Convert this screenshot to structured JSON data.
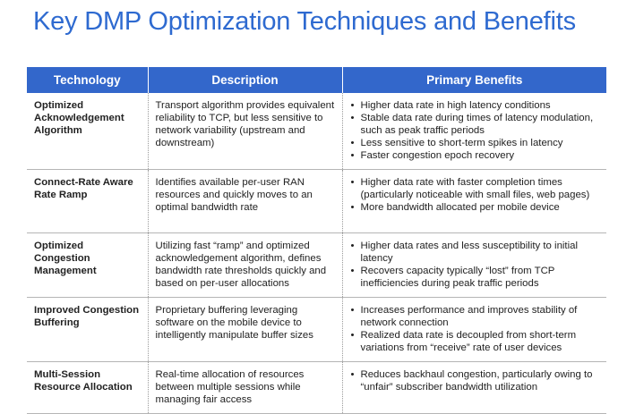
{
  "title": "Key DMP Optimization Techniques and Benefits",
  "table": {
    "headers": [
      "Technology",
      "Description",
      "Primary Benefits"
    ],
    "rows": [
      {
        "technology": "Optimized Acknowledgement Algorithm",
        "description": "Transport algorithm provides equivalent reliability to TCP, but less sensitive to network variability (upstream and downstream)",
        "benefits": [
          "Higher data rate in high latency conditions",
          "Stable data rate during times of latency modulation, such as peak traffic periods",
          "Less sensitive to short-term spikes in latency",
          "Faster congestion epoch recovery"
        ]
      },
      {
        "technology": "Connect-Rate Aware Rate Ramp",
        "description": "Identifies available per-user RAN resources and quickly moves to an optimal bandwidth rate",
        "benefits": [
          "Higher data rate with faster completion times (particularly noticeable with small files, web pages)",
          "More bandwidth allocated per mobile device"
        ]
      },
      {
        "technology": "Optimized Congestion Management",
        "description": "Utilizing fast “ramp” and optimized acknowledgement algorithm, defines bandwidth rate thresholds quickly and based on per-user allocations",
        "benefits": [
          "Higher data rates and less susceptibility to initial latency",
          "Recovers capacity typically “lost” from TCP inefficiencies during peak traffic periods"
        ]
      },
      {
        "technology": "Improved Congestion Buffering",
        "description": "Proprietary buffering leveraging software on the mobile device to intelligently manipulate buffer sizes",
        "benefits": [
          "Increases performance and improves stability of network connection",
          "Realized data rate is decoupled from short-term variations from “receive” rate of user devices"
        ]
      },
      {
        "technology": "Multi-Session Resource Allocation",
        "description": "Real-time allocation of resources between multiple sessions while managing fair access",
        "benefits": [
          "Reduces backhaul congestion, particularly owing to “unfair” subscriber bandwidth utilization"
        ]
      }
    ]
  }
}
